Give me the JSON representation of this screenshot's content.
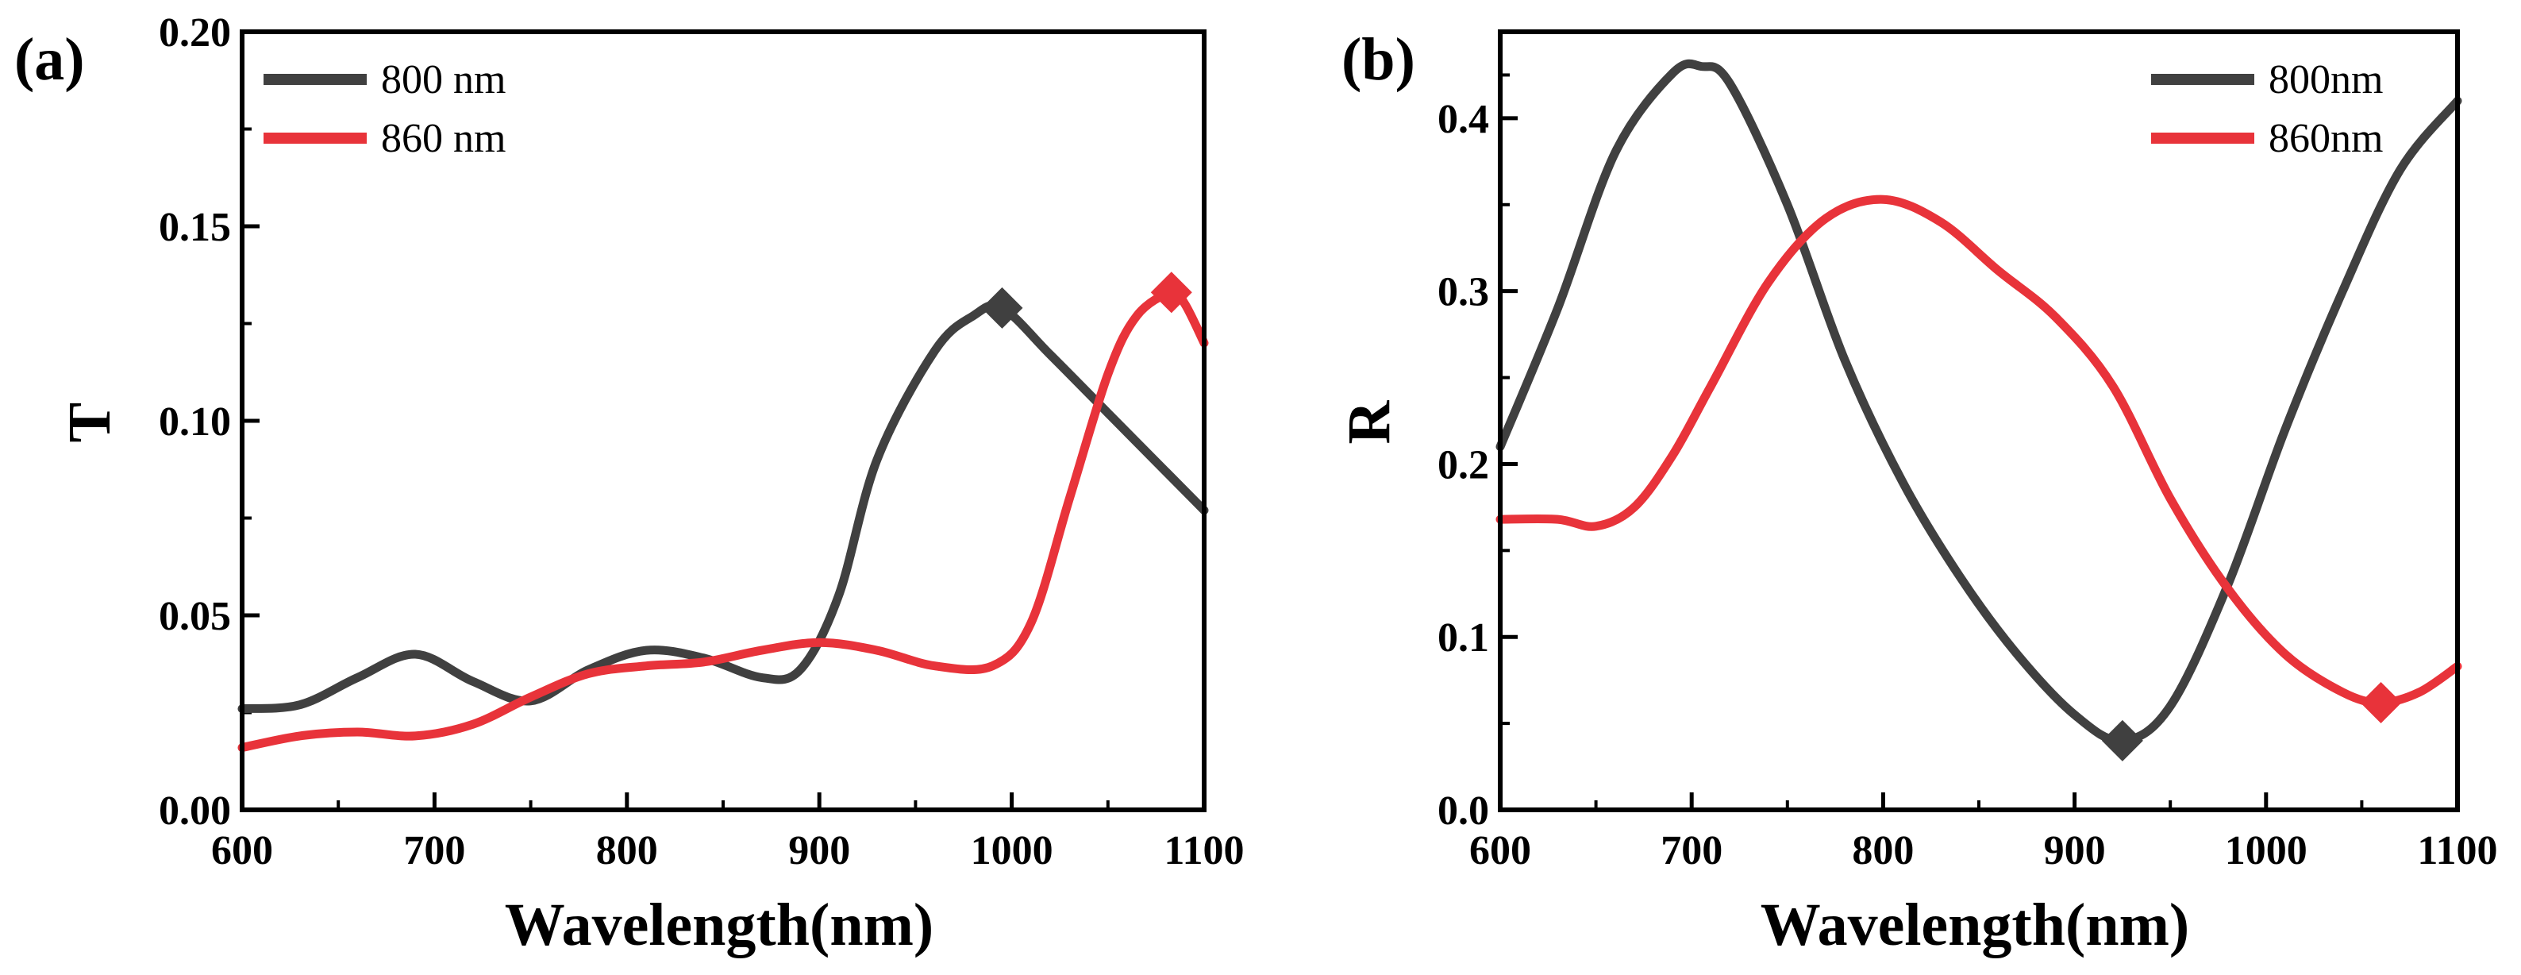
{
  "chart_data": [
    {
      "type": "line",
      "panel_label": "(a)",
      "xlabel": "Wavelength(nm)",
      "ylabel": "T",
      "xlim": [
        600,
        1100
      ],
      "ylim": [
        0,
        0.2
      ],
      "xticks": [
        600,
        700,
        800,
        900,
        1000,
        1100
      ],
      "xtick_labels": [
        "600",
        "700",
        "800",
        "900",
        "1000",
        "1100"
      ],
      "yticks": [
        0,
        0.05,
        0.1,
        0.15,
        0.2
      ],
      "ytick_labels": [
        "0.00",
        "0.05",
        "0.10",
        "0.15",
        "0.20"
      ],
      "legend_position": "top-left",
      "grid": false,
      "series": [
        {
          "name": "800 nm",
          "color": "#404040",
          "x": [
            600,
            630,
            660,
            690,
            720,
            750,
            780,
            810,
            840,
            870,
            890,
            910,
            930,
            960,
            980,
            995,
            1020,
            1050,
            1080,
            1100
          ],
          "y": [
            0.026,
            0.027,
            0.034,
            0.04,
            0.033,
            0.028,
            0.036,
            0.041,
            0.039,
            0.034,
            0.036,
            0.055,
            0.09,
            0.118,
            0.127,
            0.129,
            0.117,
            0.102,
            0.087,
            0.077
          ],
          "marker": {
            "x": 995,
            "y": 0.129
          }
        },
        {
          "name": "860 nm",
          "color": "#e8333a",
          "x": [
            600,
            630,
            660,
            690,
            720,
            750,
            780,
            810,
            840,
            870,
            900,
            930,
            960,
            990,
            1010,
            1030,
            1050,
            1065,
            1083,
            1090,
            1100
          ],
          "y": [
            0.016,
            0.019,
            0.02,
            0.019,
            0.022,
            0.029,
            0.035,
            0.037,
            0.038,
            0.041,
            0.043,
            0.041,
            0.037,
            0.037,
            0.048,
            0.08,
            0.112,
            0.127,
            0.133,
            0.13,
            0.12
          ],
          "marker": {
            "x": 1083,
            "y": 0.133
          }
        }
      ]
    },
    {
      "type": "line",
      "panel_label": "(b)",
      "xlabel": "Wavelength(nm)",
      "ylabel": "R",
      "xlim": [
        600,
        1100
      ],
      "ylim": [
        0,
        0.45
      ],
      "xticks": [
        600,
        700,
        800,
        900,
        1000,
        1100
      ],
      "xtick_labels": [
        "600",
        "700",
        "800",
        "900",
        "1000",
        "1100"
      ],
      "yticks": [
        0,
        0.1,
        0.2,
        0.3,
        0.4
      ],
      "ytick_labels": [
        "0.0",
        "0.1",
        "0.2",
        "0.3",
        "0.4"
      ],
      "legend_position": "top-right",
      "grid": false,
      "series": [
        {
          "name": "800nm",
          "color": "#404040",
          "x": [
            600,
            630,
            660,
            690,
            705,
            720,
            750,
            780,
            810,
            840,
            870,
            900,
            925,
            950,
            980,
            1010,
            1040,
            1070,
            1100
          ],
          "y": [
            0.21,
            0.29,
            0.38,
            0.426,
            0.43,
            0.42,
            0.35,
            0.26,
            0.19,
            0.135,
            0.09,
            0.055,
            0.04,
            0.06,
            0.13,
            0.22,
            0.3,
            0.37,
            0.41
          ],
          "marker": {
            "x": 925,
            "y": 0.04
          }
        },
        {
          "name": "860nm",
          "color": "#e8333a",
          "x": [
            600,
            630,
            650,
            670,
            690,
            710,
            740,
            770,
            800,
            830,
            860,
            890,
            920,
            950,
            980,
            1010,
            1040,
            1060,
            1080,
            1100
          ],
          "y": [
            0.168,
            0.168,
            0.164,
            0.175,
            0.205,
            0.245,
            0.305,
            0.342,
            0.353,
            0.34,
            0.312,
            0.285,
            0.245,
            0.18,
            0.128,
            0.09,
            0.068,
            0.062,
            0.068,
            0.083
          ],
          "marker": {
            "x": 1060,
            "y": 0.062
          }
        }
      ]
    }
  ]
}
